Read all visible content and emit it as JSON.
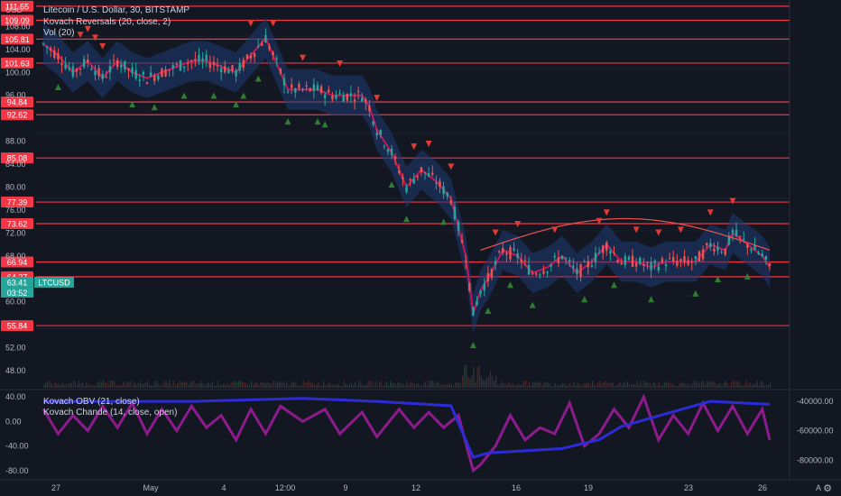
{
  "legend": {
    "symbol": "Litecoin / U.S. Dollar, 30, BITSTAMP",
    "reversals": "Kovach Reversals (20, close, 2)",
    "vol": "Vol (20)",
    "obv": "Kovach OBV (21, close)",
    "chande": "Kovach Chande (14, close, open)"
  },
  "axis": {
    "currency": "USD",
    "corner_letter": "A",
    "price_ticks": [
      "108.00",
      "104.00",
      "100.00",
      "96.00",
      "88.00",
      "84.00",
      "80.00",
      "76.00",
      "72.00",
      "68.00",
      "60.00",
      "52.00",
      "48.00"
    ],
    "level_labels": [
      "111.55",
      "109.09",
      "105.81",
      "101.63",
      "94.84",
      "92.62",
      "85.08",
      "77.39",
      "73.62",
      "66.94",
      "64.37",
      "55.84"
    ],
    "current_price": "63.41",
    "current_symbol": "LTCUSD",
    "countdown": "03:52",
    "osc_left_ticks": [
      "40.00",
      "0.00",
      "-40.00",
      "-80.00"
    ],
    "osc_right_ticks": [
      "-40000.00",
      "-60000.00",
      "-80000.00"
    ],
    "time_labels": [
      "27",
      "May",
      "4",
      "12:00",
      "9",
      "12",
      "16",
      "19",
      "23",
      "26"
    ]
  },
  "colors": {
    "background": "#131722",
    "level_line": "#f23645",
    "up_candle": "#26a69a",
    "down_candle": "#ef5350",
    "obv_line": "#2c2cd6",
    "chande_line": "#8e1b8e",
    "current_badge": "#26a69a"
  },
  "chart_data": {
    "type": "candlestick",
    "price_path": [
      [
        0,
        105
      ],
      [
        4,
        103
      ],
      [
        8,
        100
      ],
      [
        12,
        102
      ],
      [
        16,
        99
      ],
      [
        20,
        102
      ],
      [
        24,
        100
      ],
      [
        28,
        99
      ],
      [
        32,
        100
      ],
      [
        36,
        101
      ],
      [
        40,
        102
      ],
      [
        44,
        102
      ],
      [
        48,
        101
      ],
      [
        52,
        100
      ],
      [
        56,
        103
      ],
      [
        60,
        106
      ],
      [
        64,
        100
      ],
      [
        66,
        97
      ],
      [
        70,
        97
      ],
      [
        74,
        97
      ],
      [
        78,
        96
      ],
      [
        82,
        96
      ],
      [
        86,
        96
      ],
      [
        88,
        94
      ],
      [
        90,
        90
      ],
      [
        94,
        86
      ],
      [
        98,
        80
      ],
      [
        102,
        83
      ],
      [
        106,
        81
      ],
      [
        110,
        78
      ],
      [
        114,
        68
      ],
      [
        116,
        58
      ],
      [
        118,
        62
      ],
      [
        120,
        64
      ],
      [
        124,
        69
      ],
      [
        128,
        68
      ],
      [
        132,
        65
      ],
      [
        136,
        66
      ],
      [
        140,
        68
      ],
      [
        144,
        65
      ],
      [
        148,
        67
      ],
      [
        152,
        70
      ],
      [
        156,
        67
      ],
      [
        160,
        67
      ],
      [
        164,
        66
      ],
      [
        168,
        67
      ],
      [
        172,
        67
      ],
      [
        176,
        67
      ],
      [
        180,
        70
      ],
      [
        184,
        69
      ],
      [
        186,
        72
      ],
      [
        190,
        70
      ],
      [
        194,
        68
      ],
      [
        196,
        66
      ]
    ],
    "support_levels": [
      111.55,
      109.09,
      105.81,
      101.63,
      94.84,
      92.62,
      85.08,
      77.39,
      73.62,
      66.94,
      64.37,
      55.84
    ],
    "obv_path": [
      [
        0,
        -40000
      ],
      [
        20,
        -40000
      ],
      [
        40,
        -40000
      ],
      [
        70,
        -38000
      ],
      [
        90,
        -40000
      ],
      [
        110,
        -43000
      ],
      [
        116,
        -78000
      ],
      [
        120,
        -75000
      ],
      [
        140,
        -72000
      ],
      [
        150,
        -66000
      ],
      [
        156,
        -57000
      ],
      [
        170,
        -47000
      ],
      [
        180,
        -40000
      ],
      [
        196,
        -42000
      ]
    ],
    "chande_path": [
      [
        0,
        20
      ],
      [
        4,
        -20
      ],
      [
        8,
        10
      ],
      [
        12,
        -15
      ],
      [
        16,
        25
      ],
      [
        20,
        -10
      ],
      [
        24,
        30
      ],
      [
        28,
        -20
      ],
      [
        32,
        20
      ],
      [
        36,
        -15
      ],
      [
        40,
        25
      ],
      [
        44,
        -10
      ],
      [
        48,
        10
      ],
      [
        52,
        -30
      ],
      [
        56,
        20
      ],
      [
        60,
        -20
      ],
      [
        64,
        25
      ],
      [
        70,
        0
      ],
      [
        76,
        20
      ],
      [
        80,
        -20
      ],
      [
        86,
        15
      ],
      [
        90,
        -25
      ],
      [
        96,
        20
      ],
      [
        100,
        -10
      ],
      [
        104,
        15
      ],
      [
        108,
        -10
      ],
      [
        112,
        10
      ],
      [
        116,
        -80
      ],
      [
        118,
        -70
      ],
      [
        122,
        -40
      ],
      [
        126,
        10
      ],
      [
        130,
        -30
      ],
      [
        134,
        -10
      ],
      [
        138,
        -20
      ],
      [
        142,
        30
      ],
      [
        146,
        -40
      ],
      [
        150,
        -20
      ],
      [
        154,
        20
      ],
      [
        158,
        -10
      ],
      [
        162,
        40
      ],
      [
        166,
        -30
      ],
      [
        170,
        10
      ],
      [
        174,
        -20
      ],
      [
        178,
        30
      ],
      [
        182,
        -15
      ],
      [
        186,
        25
      ],
      [
        190,
        -20
      ],
      [
        194,
        20
      ],
      [
        196,
        -30
      ]
    ],
    "price_range": [
      45,
      112
    ],
    "osc_range": [
      -92,
      52
    ],
    "obv_range": [
      -92000,
      -32000
    ]
  }
}
